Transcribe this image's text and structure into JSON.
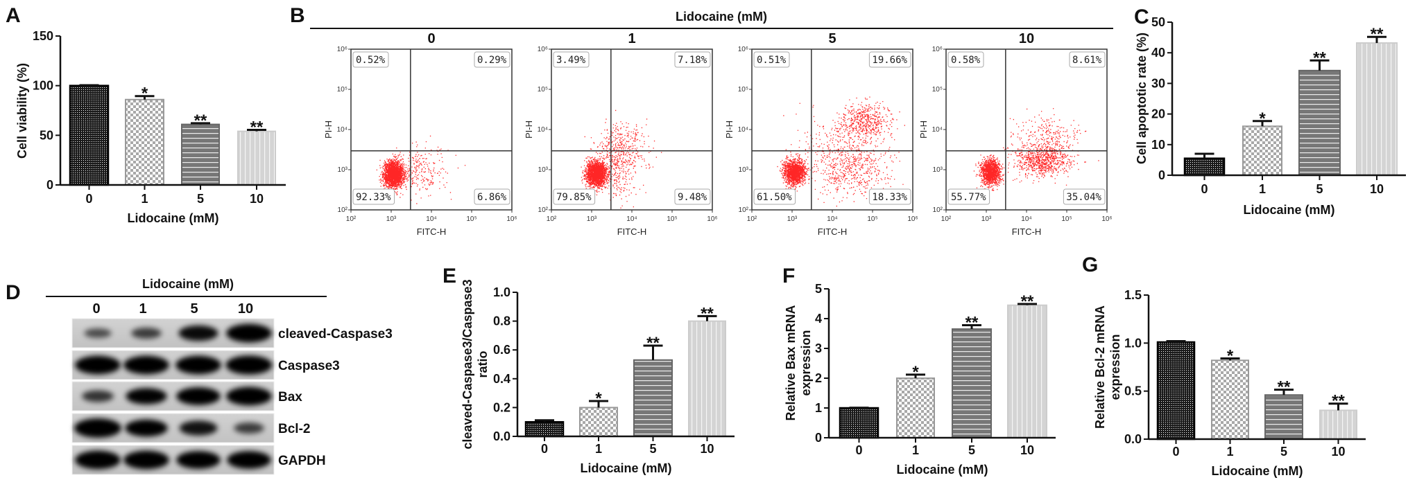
{
  "panel_labels": [
    "A",
    "B",
    "C",
    "D",
    "E",
    "F",
    "G"
  ],
  "flow": {
    "title": "Lidocaine  (mM)",
    "x_axis_label": "FITC-H",
    "y_axis_label": "PI-H",
    "tick_labels": [
      "10²",
      "10³",
      "10⁴",
      "10⁵",
      "10⁶"
    ],
    "dot_color": "#ff0000",
    "plots": [
      {
        "dose": "0",
        "quadrants": {
          "upper_left": "0.52%",
          "upper_right": "0.29%",
          "lower_left": "92.33%",
          "lower_right": "6.86%"
        }
      },
      {
        "dose": "1",
        "quadrants": {
          "upper_left": "3.49%",
          "upper_right": "7.18%",
          "lower_left": "79.85%",
          "lower_right": "9.48%"
        }
      },
      {
        "dose": "5",
        "quadrants": {
          "upper_left": "0.51%",
          "upper_right": "19.66%",
          "lower_left": "61.50%",
          "lower_right": "18.33%"
        }
      },
      {
        "dose": "10",
        "quadrants": {
          "upper_left": "0.58%",
          "upper_right": "8.61%",
          "lower_left": "55.77%",
          "lower_right": "35.04%"
        }
      }
    ]
  },
  "blot": {
    "title": "Lidocaine  (mM)",
    "lanes": [
      "0",
      "1",
      "5",
      "10"
    ],
    "rows": [
      {
        "label": "cleaved-Caspase3",
        "band_intensity": [
          0.35,
          0.45,
          0.75,
          0.95
        ]
      },
      {
        "label": "Caspase3",
        "band_intensity": [
          0.95,
          0.95,
          0.95,
          0.98
        ]
      },
      {
        "label": "Bax",
        "band_intensity": [
          0.5,
          0.8,
          0.9,
          0.95
        ]
      },
      {
        "label": "Bcl-2",
        "band_intensity": [
          1.0,
          0.85,
          0.7,
          0.45
        ]
      },
      {
        "label": "GAPDH",
        "band_intensity": [
          0.95,
          0.95,
          0.9,
          0.9
        ]
      }
    ]
  },
  "chart_data": [
    {
      "panel": "A",
      "type": "bar",
      "categories": [
        "0",
        "1",
        "5",
        "10"
      ],
      "values": [
        100,
        86,
        61,
        54
      ],
      "errors": [
        0.5,
        3.5,
        1.2,
        1.5
      ],
      "significance": [
        "",
        "*",
        "**",
        "**"
      ],
      "xlabel": "Lidocaine  (mM)",
      "ylabel_lines": [
        "Cell viability (%)"
      ],
      "ylim": [
        0,
        150
      ],
      "yticks": [
        "0",
        "50",
        "100",
        "150"
      ],
      "grid": false
    },
    {
      "panel": "C",
      "type": "bar",
      "categories": [
        "0",
        "1",
        "5",
        "10"
      ],
      "values": [
        5.5,
        16,
        34.2,
        43.2
      ],
      "errors": [
        1.5,
        1.7,
        3.3,
        2.0
      ],
      "significance": [
        "",
        "*",
        "**",
        "**"
      ],
      "xlabel": "Lidocaine  (mM)",
      "ylabel_lines": [
        "Cell apoptotic rate (%)"
      ],
      "ylim": [
        0,
        50
      ],
      "yticks": [
        "0",
        "10",
        "20",
        "30",
        "40",
        "50"
      ],
      "grid": false
    },
    {
      "panel": "E",
      "type": "bar",
      "categories": [
        "0",
        "1",
        "5",
        "10"
      ],
      "values": [
        0.1,
        0.2,
        0.53,
        0.8
      ],
      "errors": [
        0.012,
        0.045,
        0.1,
        0.035
      ],
      "significance": [
        "",
        "*",
        "**",
        "**"
      ],
      "xlabel": "Lidocaine  (mM)",
      "ylabel_lines": [
        "cleaved-Caspase3/Caspase3",
        "ratio"
      ],
      "ylim": [
        0,
        1.0
      ],
      "yticks": [
        "0.0",
        "0.2",
        "0.4",
        "0.6",
        "0.8",
        "1.0"
      ],
      "grid": false
    },
    {
      "panel": "F",
      "type": "bar",
      "categories": [
        "0",
        "1",
        "5",
        "10"
      ],
      "values": [
        1.0,
        2.0,
        3.65,
        4.45
      ],
      "errors": [
        0.01,
        0.12,
        0.13,
        0.04
      ],
      "significance": [
        "",
        "*",
        "**",
        "**"
      ],
      "xlabel": "Lidocaine  (mM)",
      "ylabel_lines": [
        "Relative Bax mRNA",
        "expression"
      ],
      "ylim": [
        0,
        5
      ],
      "yticks": [
        "0",
        "1",
        "2",
        "3",
        "4",
        "5"
      ],
      "grid": false
    },
    {
      "panel": "G",
      "type": "bar",
      "categories": [
        "0",
        "1",
        "5",
        "10"
      ],
      "values": [
        1.01,
        0.82,
        0.46,
        0.3
      ],
      "errors": [
        0.01,
        0.02,
        0.055,
        0.07
      ],
      "significance": [
        "",
        "*",
        "**",
        "**"
      ],
      "xlabel": "Lidocaine  (mM)",
      "ylabel_lines": [
        "Relative Bcl-2 mRNA",
        "expression"
      ],
      "ylim": [
        0,
        1.5
      ],
      "yticks": [
        "0.0",
        "0.5",
        "1.0",
        "1.5"
      ],
      "grid": false
    }
  ]
}
